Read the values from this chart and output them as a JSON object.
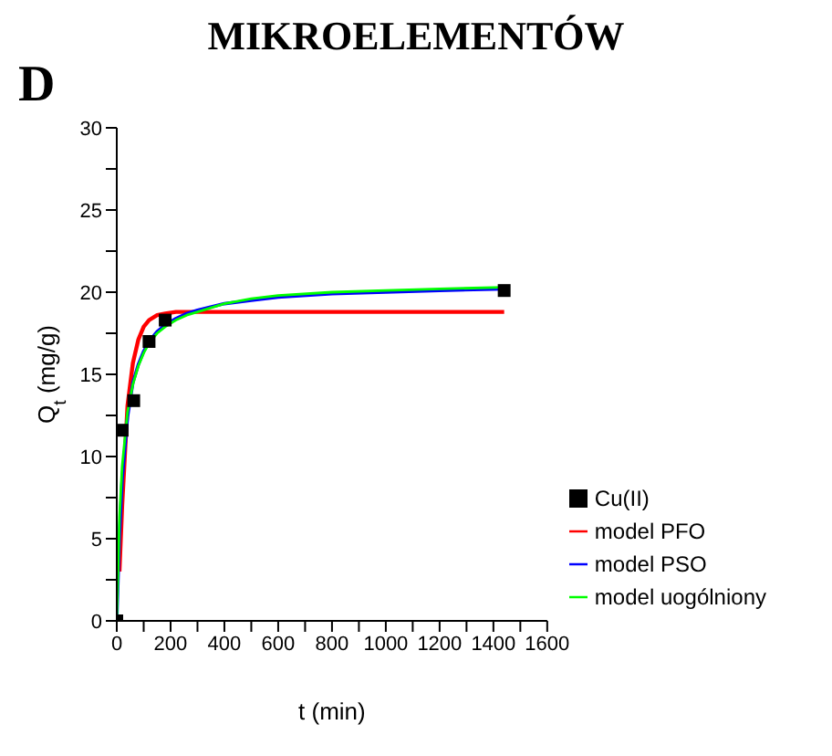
{
  "chart_data": {
    "type": "line",
    "title": "MIKROELEMENTÓW",
    "annotations": [
      "D"
    ],
    "xlabel": "t (min)",
    "ylabel": "Q$_{t}$ (mg/g)",
    "xlim": [
      0,
      1600
    ],
    "ylim": [
      0,
      30
    ],
    "xticks": [
      0,
      {
        "value": 100,
        "label": null
      },
      200,
      {
        "value": 300,
        "label": null
      },
      400,
      {
        "value": 500,
        "label": null
      },
      600,
      {
        "value": 700,
        "label": null
      },
      800,
      {
        "value": 900,
        "label": null
      },
      1000,
      {
        "value": 1100,
        "label": null
      },
      1200,
      {
        "value": 1300,
        "label": null
      },
      1400,
      {
        "value": 1500,
        "label": null
      },
      1600
    ],
    "yticks": [
      0,
      {
        "value": 2.5,
        "label": null
      },
      5,
      {
        "value": 7.5,
        "label": null
      },
      10,
      {
        "value": 12.5,
        "label": null
      },
      15,
      {
        "value": 17.5,
        "label": null
      },
      20,
      {
        "value": 22.5,
        "label": null
      },
      25,
      {
        "value": 27.5,
        "label": null
      },
      30
    ],
    "grid": false,
    "legend": "bottom right",
    "line_style": "solid",
    "series": [
      {
        "name": "Cu(II)",
        "type": "scatter",
        "marker": "square",
        "color": "#000000",
        "x": [
          0,
          20,
          63,
          120,
          180,
          1440
        ],
        "values": [
          0,
          11.6,
          13.4,
          17.0,
          18.3,
          20.1
        ]
      },
      {
        "name": "model PFO",
        "color": "#ff0000",
        "x": [
          10,
          20,
          40,
          60,
          80,
          100,
          120,
          150,
          180,
          220,
          300,
          600,
          1000,
          1440
        ],
        "values": [
          3.0,
          7.0,
          13.1,
          15.7,
          17.1,
          17.9,
          18.3,
          18.6,
          18.7,
          18.8,
          18.8,
          18.8,
          18.8,
          18.8
        ]
      },
      {
        "name": "model PSO",
        "color": "#0000ff",
        "x": [
          0,
          10,
          20,
          40,
          60,
          80,
          100,
          120,
          150,
          180,
          220,
          260,
          300,
          400,
          500,
          600,
          800,
          1000,
          1200,
          1440
        ],
        "values": [
          0,
          5.2,
          8.6,
          12.4,
          14.5,
          15.6,
          16.4,
          17.0,
          17.6,
          18.0,
          18.4,
          18.7,
          18.9,
          19.3,
          19.5,
          19.7,
          19.9,
          20.0,
          20.1,
          20.2
        ]
      },
      {
        "name": "model uogólniony",
        "color": "#00ff00",
        "x": [
          0,
          10,
          20,
          40,
          60,
          80,
          100,
          120,
          150,
          180,
          220,
          260,
          300,
          400,
          500,
          600,
          800,
          1000,
          1200,
          1440
        ],
        "values": [
          0,
          6.3,
          9.4,
          12.7,
          14.4,
          15.5,
          16.3,
          16.9,
          17.5,
          17.9,
          18.3,
          18.6,
          18.8,
          19.3,
          19.6,
          19.8,
          20.0,
          20.1,
          20.2,
          20.3
        ]
      }
    ]
  }
}
